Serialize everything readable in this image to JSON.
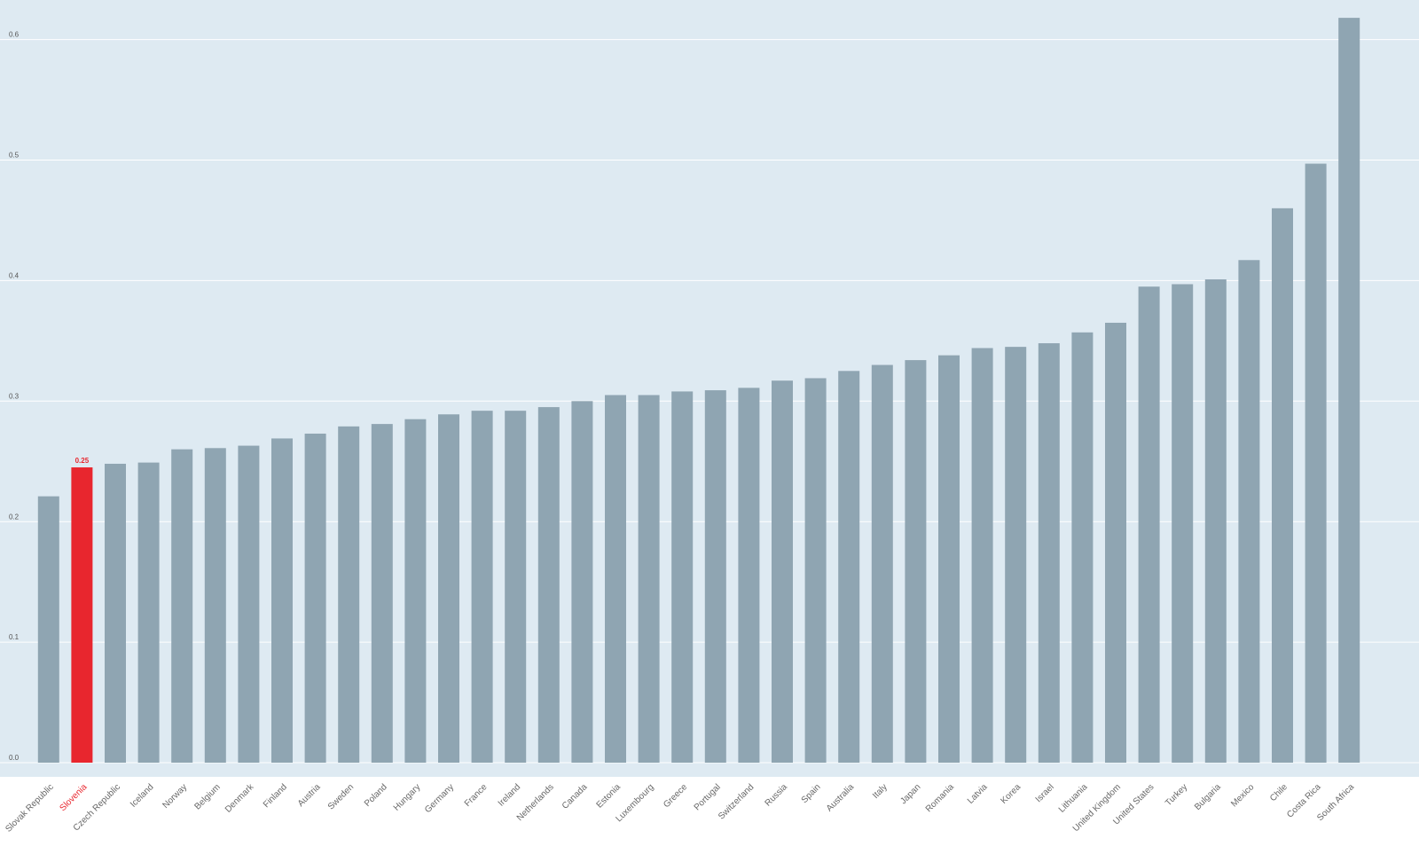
{
  "chart_data": {
    "type": "bar",
    "categories": [
      "Slovak Republic",
      "Slovenia",
      "Czech Republic",
      "Iceland",
      "Norway",
      "Belgium",
      "Denmark",
      "Finland",
      "Austria",
      "Sweden",
      "Poland",
      "Hungary",
      "Germany",
      "France",
      "Ireland",
      "Netherlands",
      "Canada",
      "Estonia",
      "Luxembourg",
      "Greece",
      "Portugal",
      "Switzerland",
      "Russia",
      "Spain",
      "Australia",
      "Italy",
      "Japan",
      "Romania",
      "Latvia",
      "Korea",
      "Israel",
      "Lithuania",
      "United Kingdom",
      "United States",
      "Turkey",
      "Bulgaria",
      "Mexico",
      "Chile",
      "Costa Rica",
      "South Africa"
    ],
    "values": [
      0.221,
      0.245,
      0.248,
      0.249,
      0.26,
      0.261,
      0.263,
      0.269,
      0.273,
      0.279,
      0.281,
      0.285,
      0.289,
      0.292,
      0.292,
      0.295,
      0.3,
      0.305,
      0.305,
      0.308,
      0.309,
      0.311,
      0.317,
      0.319,
      0.325,
      0.33,
      0.334,
      0.338,
      0.344,
      0.345,
      0.348,
      0.357,
      0.365,
      0.395,
      0.397,
      0.401,
      0.417,
      0.46,
      0.497,
      0.618
    ],
    "value_labels": [
      null,
      "0.25",
      null,
      null,
      null,
      null,
      null,
      null,
      null,
      null,
      null,
      null,
      null,
      null,
      null,
      null,
      null,
      null,
      null,
      null,
      null,
      null,
      null,
      null,
      null,
      null,
      null,
      null,
      null,
      null,
      null,
      null,
      null,
      null,
      null,
      null,
      null,
      null,
      null,
      null
    ],
    "color": "#8fa5b2",
    "colors": [
      "#8fa5b2",
      "#e8262e",
      "#8fa5b2",
      "#8fa5b2",
      "#8fa5b2",
      "#8fa5b2",
      "#8fa5b2",
      "#8fa5b2",
      "#8fa5b2",
      "#8fa5b2",
      "#8fa5b2",
      "#8fa5b2",
      "#8fa5b2",
      "#8fa5b2",
      "#8fa5b2",
      "#8fa5b2",
      "#8fa5b2",
      "#8fa5b2",
      "#8fa5b2",
      "#8fa5b2",
      "#8fa5b2",
      "#8fa5b2",
      "#8fa5b2",
      "#8fa5b2",
      "#8fa5b2",
      "#8fa5b2",
      "#8fa5b2",
      "#8fa5b2",
      "#8fa5b2",
      "#8fa5b2",
      "#8fa5b2",
      "#8fa5b2",
      "#8fa5b2",
      "#8fa5b2",
      "#8fa5b2",
      "#8fa5b2",
      "#8fa5b2",
      "#8fa5b2",
      "#8fa5b2",
      "#8fa5b2"
    ],
    "ylim": [
      0,
      0.6225
    ],
    "yticks": [
      {
        "value": 0,
        "label": "0.0"
      },
      {
        "value": 0.1,
        "label": "0.1"
      },
      {
        "value": 0.2,
        "label": "0.2"
      },
      {
        "value": 0.3,
        "label": "0.3"
      },
      {
        "value": 0.4,
        "label": "0.4"
      },
      {
        "value": 0.5,
        "label": "0.5"
      },
      {
        "value": 0.6,
        "label": "0.6"
      }
    ],
    "grid": true
  }
}
